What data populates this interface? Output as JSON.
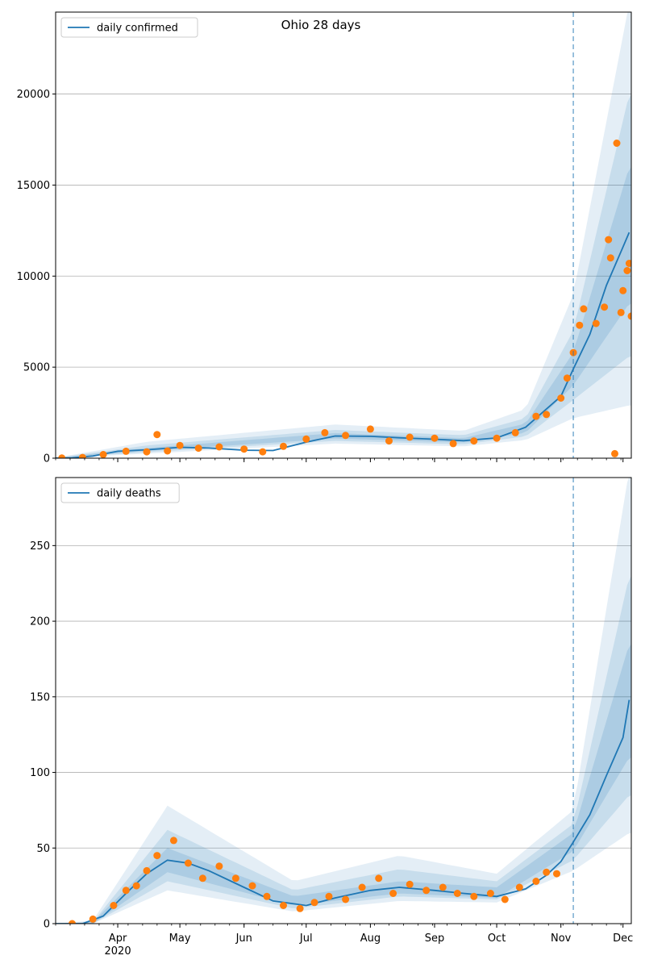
{
  "figure": {
    "title": "Ohio 28 days"
  },
  "chart_data": [
    {
      "type": "line",
      "title": "Ohio 28 days",
      "legend": {
        "entries": [
          "daily confirmed"
        ],
        "placement": "top-left"
      },
      "ylim": [
        0,
        24500
      ],
      "yticks": [
        0,
        5000,
        10000,
        15000,
        20000
      ],
      "grid": "y",
      "xlabel": "",
      "ylabel": "",
      "forecast_start": "2020-11-07",
      "series": [
        {
          "name": "daily confirmed",
          "kind": "model",
          "color": "#1f77b4",
          "points": [
            [
              "2020-03-01",
              0
            ],
            [
              "2020-03-10",
              20
            ],
            [
              "2020-03-20",
              120
            ],
            [
              "2020-04-01",
              380
            ],
            [
              "2020-04-15",
              460
            ],
            [
              "2020-05-01",
              600
            ],
            [
              "2020-05-15",
              560
            ],
            [
              "2020-06-01",
              440
            ],
            [
              "2020-06-15",
              420
            ],
            [
              "2020-07-01",
              880
            ],
            [
              "2020-07-15",
              1220
            ],
            [
              "2020-08-01",
              1200
            ],
            [
              "2020-08-15",
              1120
            ],
            [
              "2020-09-01",
              1040
            ],
            [
              "2020-09-15",
              960
            ],
            [
              "2020-10-01",
              1110
            ],
            [
              "2020-10-15",
              1700
            ],
            [
              "2020-11-01",
              3400
            ],
            [
              "2020-11-07",
              4900
            ],
            [
              "2020-11-15",
              6800
            ],
            [
              "2020-11-23",
              9500
            ],
            [
              "2020-12-01",
              11600
            ],
            [
              "2020-12-04",
              12400
            ]
          ]
        },
        {
          "name": "observed",
          "kind": "scatter",
          "color": "#ff7f0e",
          "points": [
            [
              "2020-03-05",
              10
            ],
            [
              "2020-03-15",
              40
            ],
            [
              "2020-03-25",
              200
            ],
            [
              "2020-04-05",
              380
            ],
            [
              "2020-04-15",
              350
            ],
            [
              "2020-04-20",
              1300
            ],
            [
              "2020-04-25",
              400
            ],
            [
              "2020-05-01",
              700
            ],
            [
              "2020-05-10",
              550
            ],
            [
              "2020-05-20",
              620
            ],
            [
              "2020-06-01",
              500
            ],
            [
              "2020-06-10",
              350
            ],
            [
              "2020-06-20",
              650
            ],
            [
              "2020-07-01",
              1050
            ],
            [
              "2020-07-10",
              1400
            ],
            [
              "2020-07-20",
              1250
            ],
            [
              "2020-08-01",
              1600
            ],
            [
              "2020-08-10",
              950
            ],
            [
              "2020-08-20",
              1150
            ],
            [
              "2020-09-01",
              1100
            ],
            [
              "2020-09-10",
              800
            ],
            [
              "2020-09-20",
              950
            ],
            [
              "2020-10-01",
              1100
            ],
            [
              "2020-10-10",
              1400
            ],
            [
              "2020-10-20",
              2300
            ],
            [
              "2020-10-25",
              2400
            ],
            [
              "2020-11-01",
              3300
            ],
            [
              "2020-11-04",
              4400
            ],
            [
              "2020-11-07",
              5800
            ],
            [
              "2020-11-10",
              7300
            ],
            [
              "2020-11-12",
              8200
            ],
            [
              "2020-11-18",
              7400
            ],
            [
              "2020-11-22",
              8300
            ],
            [
              "2020-11-24",
              12000
            ],
            [
              "2020-11-25",
              11000
            ],
            [
              "2020-11-27",
              250
            ],
            [
              "2020-11-28",
              17300
            ],
            [
              "2020-11-30",
              8000
            ],
            [
              "2020-12-01",
              9200
            ],
            [
              "2020-12-03",
              10300
            ],
            [
              "2020-12-04",
              10700
            ],
            [
              "2020-12-05",
              7800
            ]
          ]
        }
      ],
      "bands": [
        {
          "lo": [
            [
              "2020-03-01",
              0
            ],
            [
              "2020-04-15",
              250
            ],
            [
              "2020-07-15",
              800
            ],
            [
              "2020-09-15",
              650
            ],
            [
              "2020-10-15",
              1000
            ],
            [
              "2020-11-07",
              2200
            ],
            [
              "2020-12-04",
              2900
            ]
          ],
          "hi": [
            [
              "2020-03-01",
              0
            ],
            [
              "2020-04-15",
              900
            ],
            [
              "2020-07-15",
              1850
            ],
            [
              "2020-09-15",
              1500
            ],
            [
              "2020-10-15",
              2700
            ],
            [
              "2020-11-07",
              9000
            ],
            [
              "2020-12-04",
              25000
            ]
          ]
        },
        {
          "lo": [
            [
              "2020-03-01",
              0
            ],
            [
              "2020-04-15",
              330
            ],
            [
              "2020-07-15",
              950
            ],
            [
              "2020-09-15",
              760
            ],
            [
              "2020-10-15",
              1200
            ],
            [
              "2020-11-07",
              3200
            ],
            [
              "2020-12-04",
              5600
            ]
          ],
          "hi": [
            [
              "2020-03-01",
              0
            ],
            [
              "2020-04-15",
              700
            ],
            [
              "2020-07-15",
              1550
            ],
            [
              "2020-09-15",
              1260
            ],
            [
              "2020-10-15",
              2200
            ],
            [
              "2020-11-07",
              7000
            ],
            [
              "2020-12-04",
              20000
            ]
          ]
        },
        {
          "lo": [
            [
              "2020-03-01",
              0
            ],
            [
              "2020-04-15",
              400
            ],
            [
              "2020-07-15",
              1080
            ],
            [
              "2020-09-15",
              860
            ],
            [
              "2020-10-15",
              1400
            ],
            [
              "2020-11-07",
              4000
            ],
            [
              "2020-12-04",
              8500
            ]
          ],
          "hi": [
            [
              "2020-03-01",
              0
            ],
            [
              "2020-04-15",
              560
            ],
            [
              "2020-07-15",
              1380
            ],
            [
              "2020-09-15",
              1100
            ],
            [
              "2020-10-15",
              1900
            ],
            [
              "2020-11-07",
              5800
            ],
            [
              "2020-12-04",
              16000
            ]
          ]
        }
      ]
    },
    {
      "type": "line",
      "legend": {
        "entries": [
          "daily deaths"
        ],
        "placement": "top-left"
      },
      "ylim": [
        0,
        295
      ],
      "yticks": [
        0,
        50,
        100,
        150,
        200,
        250
      ],
      "grid": "y",
      "xlabel": "",
      "ylabel": "",
      "forecast_start": "2020-11-07",
      "series": [
        {
          "name": "daily deaths",
          "kind": "model",
          "color": "#1f77b4",
          "points": [
            [
              "2020-03-01",
              0
            ],
            [
              "2020-03-15",
              0
            ],
            [
              "2020-03-25",
              5
            ],
            [
              "2020-04-05",
              20
            ],
            [
              "2020-04-15",
              33
            ],
            [
              "2020-04-25",
              42
            ],
            [
              "2020-05-05",
              40
            ],
            [
              "2020-05-15",
              35
            ],
            [
              "2020-06-01",
              24
            ],
            [
              "2020-06-15",
              15
            ],
            [
              "2020-07-01",
              12
            ],
            [
              "2020-07-15",
              17
            ],
            [
              "2020-08-01",
              22
            ],
            [
              "2020-08-15",
              24
            ],
            [
              "2020-09-01",
              22
            ],
            [
              "2020-09-15",
              20
            ],
            [
              "2020-10-01",
              18
            ],
            [
              "2020-10-15",
              23
            ],
            [
              "2020-10-25",
              32
            ],
            [
              "2020-11-01",
              41
            ],
            [
              "2020-11-07",
              54
            ],
            [
              "2020-11-15",
              72
            ],
            [
              "2020-11-23",
              98
            ],
            [
              "2020-12-01",
              123
            ],
            [
              "2020-12-04",
              148
            ]
          ]
        },
        {
          "name": "observed",
          "kind": "scatter",
          "color": "#ff7f0e",
          "points": [
            [
              "2020-03-10",
              0
            ],
            [
              "2020-03-20",
              3
            ],
            [
              "2020-03-30",
              12
            ],
            [
              "2020-04-05",
              22
            ],
            [
              "2020-04-10",
              25
            ],
            [
              "2020-04-15",
              35
            ],
            [
              "2020-04-20",
              45
            ],
            [
              "2020-04-28",
              55
            ],
            [
              "2020-05-05",
              40
            ],
            [
              "2020-05-12",
              30
            ],
            [
              "2020-05-20",
              38
            ],
            [
              "2020-05-28",
              30
            ],
            [
              "2020-06-05",
              25
            ],
            [
              "2020-06-12",
              18
            ],
            [
              "2020-06-20",
              12
            ],
            [
              "2020-06-28",
              10
            ],
            [
              "2020-07-05",
              14
            ],
            [
              "2020-07-12",
              18
            ],
            [
              "2020-07-20",
              16
            ],
            [
              "2020-07-28",
              24
            ],
            [
              "2020-08-05",
              30
            ],
            [
              "2020-08-12",
              20
            ],
            [
              "2020-08-20",
              26
            ],
            [
              "2020-08-28",
              22
            ],
            [
              "2020-09-05",
              24
            ],
            [
              "2020-09-12",
              20
            ],
            [
              "2020-09-20",
              18
            ],
            [
              "2020-09-28",
              20
            ],
            [
              "2020-10-05",
              16
            ],
            [
              "2020-10-12",
              24
            ],
            [
              "2020-10-20",
              28
            ],
            [
              "2020-10-25",
              34
            ],
            [
              "2020-10-30",
              33
            ]
          ]
        }
      ],
      "bands": [
        {
          "lo": [
            [
              "2020-03-01",
              0
            ],
            [
              "2020-03-20",
              0
            ],
            [
              "2020-04-25",
              22
            ],
            [
              "2020-06-25",
              8
            ],
            [
              "2020-08-15",
              15
            ],
            [
              "2020-10-01",
              14
            ],
            [
              "2020-11-07",
              35
            ],
            [
              "2020-12-04",
              60
            ]
          ],
          "hi": [
            [
              "2020-03-01",
              0
            ],
            [
              "2020-03-20",
              2
            ],
            [
              "2020-04-25",
              78
            ],
            [
              "2020-06-25",
              28
            ],
            [
              "2020-08-15",
              45
            ],
            [
              "2020-10-01",
              33
            ],
            [
              "2020-11-07",
              75
            ],
            [
              "2020-12-04",
              300
            ]
          ]
        },
        {
          "lo": [
            [
              "2020-03-01",
              0
            ],
            [
              "2020-03-20",
              0
            ],
            [
              "2020-04-25",
              28
            ],
            [
              "2020-06-25",
              10
            ],
            [
              "2020-08-15",
              18
            ],
            [
              "2020-10-01",
              16
            ],
            [
              "2020-11-07",
              42
            ],
            [
              "2020-12-04",
              85
            ]
          ],
          "hi": [
            [
              "2020-03-01",
              0
            ],
            [
              "2020-03-20",
              1
            ],
            [
              "2020-04-25",
              62
            ],
            [
              "2020-06-25",
              22
            ],
            [
              "2020-08-15",
              36
            ],
            [
              "2020-10-01",
              28
            ],
            [
              "2020-11-07",
              66
            ],
            [
              "2020-12-04",
              230
            ]
          ]
        },
        {
          "lo": [
            [
              "2020-03-01",
              0
            ],
            [
              "2020-03-20",
              0
            ],
            [
              "2020-04-25",
              34
            ],
            [
              "2020-06-25",
              12
            ],
            [
              "2020-08-15",
              20
            ],
            [
              "2020-10-01",
              17
            ],
            [
              "2020-11-07",
              48
            ],
            [
              "2020-12-04",
              110
            ]
          ],
          "hi": [
            [
              "2020-03-01",
              0
            ],
            [
              "2020-03-20",
              1
            ],
            [
              "2020-04-25",
              50
            ],
            [
              "2020-06-25",
              18
            ],
            [
              "2020-08-15",
              28
            ],
            [
              "2020-10-01",
              24
            ],
            [
              "2020-11-07",
              60
            ],
            [
              "2020-12-04",
              185
            ]
          ]
        }
      ]
    }
  ],
  "xaxis": {
    "range": [
      "2020-03-02",
      "2020-12-05"
    ],
    "ticks": [
      {
        "date": "2020-04-01",
        "label": "Apr",
        "year": "2020"
      },
      {
        "date": "2020-05-01",
        "label": "May",
        "year": ""
      },
      {
        "date": "2020-06-01",
        "label": "Jun",
        "year": ""
      },
      {
        "date": "2020-07-01",
        "label": "Jul",
        "year": ""
      },
      {
        "date": "2020-08-01",
        "label": "Aug",
        "year": ""
      },
      {
        "date": "2020-09-01",
        "label": "Sep",
        "year": ""
      },
      {
        "date": "2020-10-01",
        "label": "Oct",
        "year": ""
      },
      {
        "date": "2020-11-01",
        "label": "Nov",
        "year": ""
      },
      {
        "date": "2020-12-01",
        "label": "Dec",
        "year": ""
      }
    ]
  },
  "colors": {
    "model_line": "#1f77b4",
    "observed": "#ff7f0e",
    "band": "#1f77b4",
    "grid": "#b0b0b0",
    "forecast_line": "#1f77b4"
  }
}
